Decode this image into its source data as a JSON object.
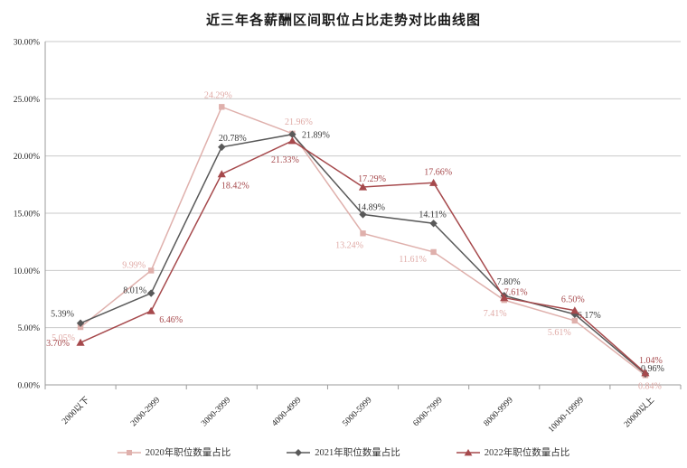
{
  "title": "近三年各薪酬区间职位占比走势对比曲线图",
  "chart_data": {
    "type": "line",
    "categories": [
      "2000以下",
      "2000-2999",
      "3000-3999",
      "4000-4999",
      "5000-5999",
      "6000-7999",
      "8000-9999",
      "10000-19999",
      "20000以上"
    ],
    "series": [
      {
        "name": "2020年职位数量占比",
        "marker": "square",
        "color": "#dfb0ac",
        "label_color": "#e0aba7",
        "values": [
          5.05,
          9.99,
          24.29,
          21.96,
          13.24,
          11.61,
          7.41,
          5.61,
          0.84
        ]
      },
      {
        "name": "2021年职位数量占比",
        "marker": "diamond",
        "color": "#595959",
        "label_color": "#3a3a3a",
        "values": [
          5.39,
          8.01,
          20.78,
          21.89,
          14.89,
          14.11,
          7.8,
          6.17,
          0.96
        ]
      },
      {
        "name": "2022年职位数量占比",
        "marker": "triangle",
        "color": "#a6494c",
        "label_color": "#a6494c",
        "values": [
          3.7,
          6.46,
          18.42,
          21.33,
          17.29,
          17.66,
          7.61,
          6.5,
          1.04
        ]
      }
    ],
    "ylim": [
      0,
      30
    ],
    "ytick_step": 5,
    "ytick_labels": [
      "0.00%",
      "5.00%",
      "10.00%",
      "15.00%",
      "20.00%",
      "25.00%",
      "30.00%"
    ],
    "data_label_format": "0.00%",
    "grid": true,
    "legend_position": "bottom",
    "label_offsets": [
      [
        [
          -19,
          12
        ],
        [
          -19,
          -6
        ],
        [
          -4,
          -13
        ],
        [
          7,
          -13
        ],
        [
          -15,
          13
        ],
        [
          -23,
          8
        ],
        [
          -10,
          15
        ],
        [
          -17,
          13
        ],
        [
          5,
          12
        ]
      ],
      [
        [
          -20,
          -10
        ],
        [
          -18,
          -3
        ],
        [
          12,
          -10
        ],
        [
          26,
          1
        ],
        [
          9,
          -8
        ],
        [
          -1,
          -10
        ],
        [
          5,
          -15
        ],
        [
          16,
          1
        ],
        [
          8,
          -6
        ]
      ],
      [
        [
          -25,
          1
        ],
        [
          22,
          10
        ],
        [
          15,
          13
        ],
        [
          -8,
          21
        ],
        [
          10,
          -9
        ],
        [
          5,
          -12
        ],
        [
          13,
          -6
        ],
        [
          -2,
          -12
        ],
        [
          6,
          -14
        ]
      ]
    ],
    "axis_color": "#9b9b9b",
    "grid_color": "#c9c9c9",
    "tick_label_color": "#262626"
  }
}
